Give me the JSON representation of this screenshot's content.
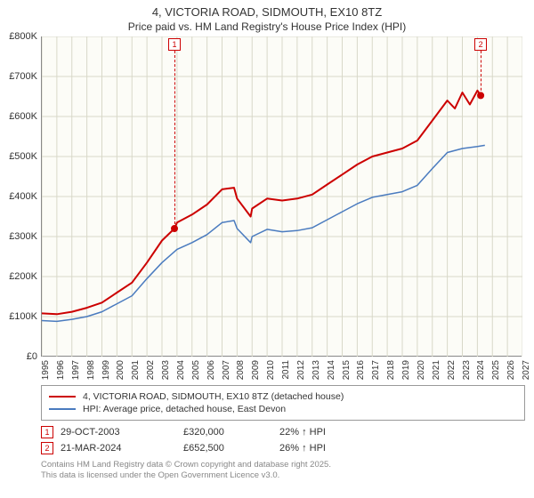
{
  "title_line1": "4, VICTORIA ROAD, SIDMOUTH, EX10 8TZ",
  "title_line2": "Price paid vs. HM Land Registry's House Price Index (HPI)",
  "chart": {
    "type": "line",
    "background_color": "#fcfcf7",
    "grid_color": "#d8d8c8",
    "axis_color": "#888888",
    "xlim": [
      1995,
      2027
    ],
    "ylim": [
      0,
      800000
    ],
    "ytick_step": 100000,
    "yticks": [
      {
        "v": 0,
        "label": "£0"
      },
      {
        "v": 100000,
        "label": "£100K"
      },
      {
        "v": 200000,
        "label": "£200K"
      },
      {
        "v": 300000,
        "label": "£300K"
      },
      {
        "v": 400000,
        "label": "£400K"
      },
      {
        "v": 500000,
        "label": "£500K"
      },
      {
        "v": 600000,
        "label": "£600K"
      },
      {
        "v": 700000,
        "label": "£700K"
      },
      {
        "v": 800000,
        "label": "£800K"
      }
    ],
    "xticks": [
      1995,
      1996,
      1997,
      1998,
      1999,
      2000,
      2001,
      2002,
      2003,
      2004,
      2005,
      2006,
      2007,
      2008,
      2009,
      2010,
      2011,
      2012,
      2013,
      2014,
      2015,
      2016,
      2017,
      2018,
      2019,
      2020,
      2021,
      2022,
      2023,
      2024,
      2025,
      2026,
      2027
    ],
    "label_fontsize": 11,
    "series": [
      {
        "name": "4, VICTORIA ROAD, SIDMOUTH, EX10 8TZ (detached house)",
        "color": "#cc0000",
        "line_width": 2,
        "data": [
          [
            1995,
            108000
          ],
          [
            1996,
            106000
          ],
          [
            1997,
            112000
          ],
          [
            1998,
            122000
          ],
          [
            1999,
            135000
          ],
          [
            2000,
            160000
          ],
          [
            2001,
            185000
          ],
          [
            2002,
            235000
          ],
          [
            2003,
            290000
          ],
          [
            2003.83,
            320000
          ],
          [
            2004,
            335000
          ],
          [
            2005,
            355000
          ],
          [
            2006,
            380000
          ],
          [
            2007,
            418000
          ],
          [
            2007.8,
            422000
          ],
          [
            2008,
            395000
          ],
          [
            2008.9,
            350000
          ],
          [
            2009,
            370000
          ],
          [
            2010,
            395000
          ],
          [
            2011,
            390000
          ],
          [
            2012,
            395000
          ],
          [
            2013,
            405000
          ],
          [
            2014,
            430000
          ],
          [
            2015,
            455000
          ],
          [
            2016,
            480000
          ],
          [
            2017,
            500000
          ],
          [
            2018,
            510000
          ],
          [
            2019,
            520000
          ],
          [
            2020,
            540000
          ],
          [
            2021,
            590000
          ],
          [
            2022,
            640000
          ],
          [
            2022.5,
            620000
          ],
          [
            2023,
            660000
          ],
          [
            2023.5,
            630000
          ],
          [
            2024,
            665000
          ],
          [
            2024.22,
            652500
          ]
        ]
      },
      {
        "name": "HPI: Average price, detached house, East Devon",
        "color": "#4a7bbf",
        "line_width": 1.5,
        "data": [
          [
            1995,
            90000
          ],
          [
            1996,
            88000
          ],
          [
            1997,
            93000
          ],
          [
            1998,
            100000
          ],
          [
            1999,
            112000
          ],
          [
            2000,
            132000
          ],
          [
            2001,
            152000
          ],
          [
            2002,
            195000
          ],
          [
            2003,
            235000
          ],
          [
            2004,
            268000
          ],
          [
            2005,
            285000
          ],
          [
            2006,
            305000
          ],
          [
            2007,
            335000
          ],
          [
            2007.8,
            340000
          ],
          [
            2008,
            320000
          ],
          [
            2008.9,
            285000
          ],
          [
            2009,
            300000
          ],
          [
            2010,
            318000
          ],
          [
            2011,
            312000
          ],
          [
            2012,
            315000
          ],
          [
            2013,
            322000
          ],
          [
            2014,
            342000
          ],
          [
            2015,
            362000
          ],
          [
            2016,
            382000
          ],
          [
            2017,
            398000
          ],
          [
            2018,
            405000
          ],
          [
            2019,
            412000
          ],
          [
            2020,
            428000
          ],
          [
            2021,
            470000
          ],
          [
            2022,
            510000
          ],
          [
            2023,
            520000
          ],
          [
            2024,
            525000
          ],
          [
            2024.5,
            528000
          ]
        ]
      }
    ],
    "markers": [
      {
        "n": "1",
        "color": "#cc0000",
        "x": 2003.83,
        "y_top": 0,
        "dot_y": 320000
      },
      {
        "n": "2",
        "color": "#cc0000",
        "x": 2024.22,
        "y_top": 0,
        "dot_y": 652500
      }
    ]
  },
  "legend": {
    "border_color": "#999999",
    "items": [
      {
        "color": "#cc0000",
        "label": "4, VICTORIA ROAD, SIDMOUTH, EX10 8TZ (detached house)"
      },
      {
        "color": "#4a7bbf",
        "label": "HPI: Average price, detached house, East Devon"
      }
    ]
  },
  "transactions": [
    {
      "n": "1",
      "color": "#cc0000",
      "date": "29-OCT-2003",
      "price": "£320,000",
      "hpi": "22% ↑ HPI"
    },
    {
      "n": "2",
      "color": "#cc0000",
      "date": "21-MAR-2024",
      "price": "£652,500",
      "hpi": "26% ↑ HPI"
    }
  ],
  "footer_line1": "Contains HM Land Registry data © Crown copyright and database right 2025.",
  "footer_line2": "This data is licensed under the Open Government Licence v3.0."
}
